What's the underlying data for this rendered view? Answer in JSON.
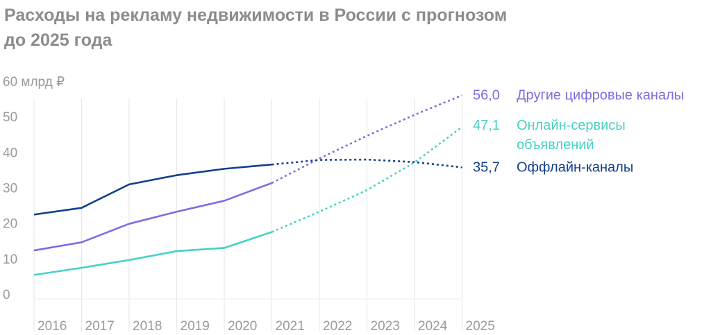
{
  "chart_data": {
    "type": "line",
    "title_lines": [
      "Расходы на рекламу недвижимости в России с прогнозом",
      "до 2025 года"
    ],
    "y_unit": "60 млрд ₽",
    "ylim": [
      0,
      60
    ],
    "yticks": [
      "0",
      "10",
      "20",
      "30",
      "40",
      "50"
    ],
    "categories": [
      "2016",
      "2017",
      "2018",
      "2019",
      "2020",
      "2021",
      "2022",
      "2023",
      "2024",
      "2025"
    ],
    "forecast_from": "2021",
    "series": [
      {
        "name": "Другие цифровые каналы",
        "label_lines": [
          "Другие цифровые каналы"
        ],
        "end_label": "56,0",
        "color": "#7b6ee0",
        "values": [
          12.3,
          14.6,
          19.8,
          23.2,
          26.3,
          31.3,
          38.2,
          44.6,
          50.5,
          56.0
        ]
      },
      {
        "name": "Онлайн-сервисы объявлений",
        "label_lines": [
          "Онлайн-сервисы",
          "объявлений"
        ],
        "end_label": "47,1",
        "color": "#46d1c3",
        "values": [
          5.4,
          7.4,
          9.6,
          12.1,
          13.0,
          17.5,
          23.2,
          29.3,
          37.1,
          47.1
        ]
      },
      {
        "name": "Оффлайн-каналы",
        "label_lines": [
          "Оффлайн-каналы"
        ],
        "end_label": "35,7",
        "color": "#0f3f8a",
        "values": [
          22.4,
          24.3,
          30.9,
          33.5,
          35.3,
          36.5,
          37.8,
          37.9,
          37.2,
          35.7
        ]
      }
    ]
  }
}
